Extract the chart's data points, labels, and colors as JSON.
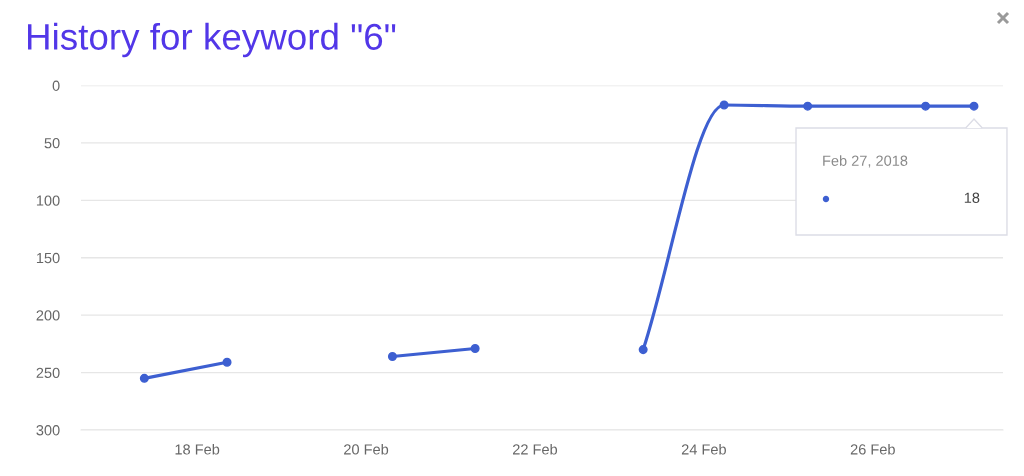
{
  "chart_data": {
    "type": "line",
    "title": "History for keyword \"6\"",
    "x": [
      "2018-02-17T09:00",
      "2018-02-18T08:30",
      "2018-02-19T08:00",
      "2018-02-20T07:30",
      "2018-02-21T07:00",
      "2018-02-22T07:00",
      "2018-02-23T06:45",
      "2018-02-24T05:45",
      "2018-02-25T05:30",
      "2018-02-26T15:00",
      "2018-02-27T04:45"
    ],
    "series": [
      {
        "color": "#3d5fd1",
        "values": [
          255,
          241,
          null,
          236,
          229,
          null,
          230,
          17,
          18,
          18,
          18
        ]
      }
    ],
    "xlim": [
      "2018-02-16T15:00",
      "2018-02-27T13:00"
    ],
    "xticks": [
      {
        "value": "2018-02-18",
        "label": "18 Feb"
      },
      {
        "value": "2018-02-20",
        "label": "20 Feb"
      },
      {
        "value": "2018-02-22",
        "label": "22 Feb"
      },
      {
        "value": "2018-02-24",
        "label": "24 Feb"
      },
      {
        "value": "2018-02-26",
        "label": "26 Feb"
      }
    ],
    "ylim": [
      300,
      0
    ],
    "yticks": [
      0,
      50,
      100,
      150,
      200,
      250,
      300
    ],
    "grid": "y",
    "marker": "circle",
    "line_style": "solid",
    "annotations": [
      "Feb 27, 2018",
      "18"
    ]
  }
}
